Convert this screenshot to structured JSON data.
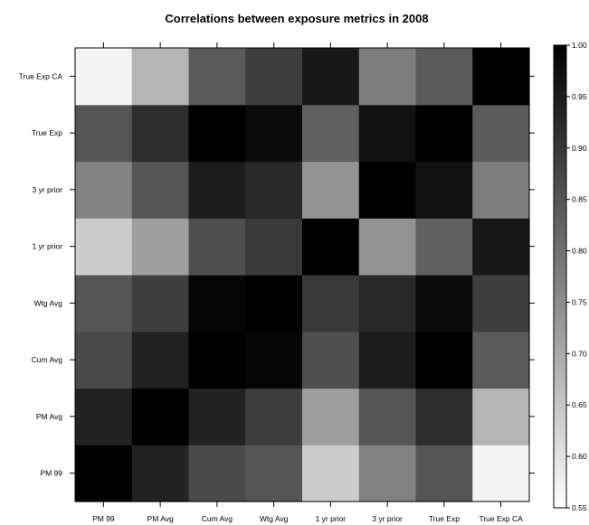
{
  "chart_data": {
    "type": "heatmap",
    "title": "Correlations between exposure metrics in 2008",
    "xlabel": "",
    "ylabel": "",
    "x_categories": [
      "PM 99",
      "PM Avg",
      "Cum Avg",
      "Wtg Avg",
      "1 yr prior",
      "3 yr prior",
      "True Exp",
      "True Exp CA"
    ],
    "y_categories": [
      "PM 99",
      "PM Avg",
      "Cum Avg",
      "Wtg Avg",
      "1 yr prior",
      "3 yr prior",
      "True Exp",
      "True Exp CA"
    ],
    "values": [
      [
        1.0,
        0.94,
        0.87,
        0.85,
        0.64,
        0.77,
        0.85,
        0.57
      ],
      [
        0.94,
        1.0,
        0.94,
        0.89,
        0.72,
        0.85,
        0.92,
        0.68
      ],
      [
        0.87,
        0.94,
        1.0,
        0.99,
        0.86,
        0.95,
        1.0,
        0.84
      ],
      [
        0.85,
        0.89,
        0.99,
        1.0,
        0.9,
        0.93,
        0.98,
        0.89
      ],
      [
        0.64,
        0.72,
        0.86,
        0.9,
        1.0,
        0.74,
        0.83,
        0.96
      ],
      [
        0.77,
        0.85,
        0.95,
        0.93,
        0.74,
        1.0,
        0.97,
        0.78
      ],
      [
        0.85,
        0.92,
        1.0,
        0.98,
        0.83,
        0.97,
        1.0,
        0.84
      ],
      [
        0.57,
        0.68,
        0.84,
        0.89,
        0.96,
        0.78,
        0.84,
        1.0
      ]
    ],
    "colorbar": {
      "min": 0.55,
      "max": 1.0,
      "ticks": [
        "0.55",
        "0.60",
        "0.65",
        "0.70",
        "0.75",
        "0.80",
        "0.85",
        "0.90",
        "0.95",
        "1.00"
      ]
    },
    "colors": {
      "low": "#ffffff",
      "high": "#000000"
    },
    "grid": false
  }
}
